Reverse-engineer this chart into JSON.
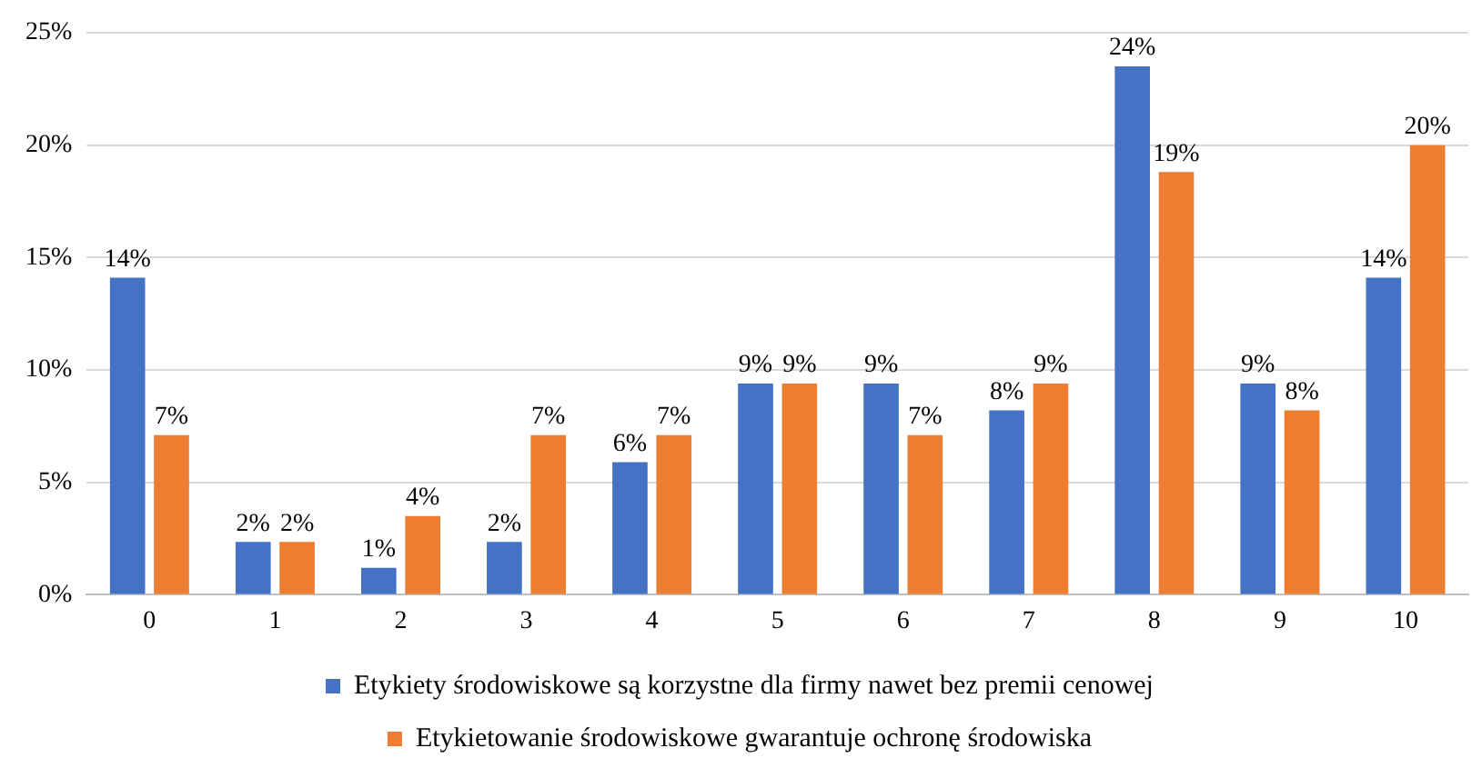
{
  "chart_data": {
    "type": "bar",
    "categories": [
      "0",
      "1",
      "2",
      "3",
      "4",
      "5",
      "6",
      "7",
      "8",
      "9",
      "10"
    ],
    "series": [
      {
        "name": "Etykiety środowiskowe są korzystne dla firmy nawet bez premii cenowej",
        "color": "#4472c4",
        "values": [
          14.1,
          2.35,
          1.2,
          2.35,
          5.9,
          9.4,
          9.4,
          8.2,
          23.5,
          9.4,
          14.1
        ],
        "value_labels": [
          "14%",
          "2%",
          "1%",
          "2%",
          "6%",
          "9%",
          "9%",
          "8%",
          "24%",
          "9%",
          "14%"
        ]
      },
      {
        "name": "Etykietowanie środowiskowe gwarantuje ochronę środowiska",
        "color": "#ed7d31",
        "values": [
          7.1,
          2.35,
          3.5,
          7.1,
          7.1,
          9.4,
          7.1,
          9.4,
          18.8,
          8.2,
          20
        ],
        "value_labels": [
          "7%",
          "2%",
          "4%",
          "7%",
          "7%",
          "9%",
          "7%",
          "9%",
          "19%",
          "8%",
          "20%"
        ]
      }
    ],
    "ylim": [
      0,
      25
    ],
    "yticks": [
      {
        "value": 0,
        "label": "0%"
      },
      {
        "value": 5,
        "label": "5%"
      },
      {
        "value": 10,
        "label": "10%"
      },
      {
        "value": 15,
        "label": "15%"
      },
      {
        "value": 20,
        "label": "20%"
      },
      {
        "value": 25,
        "label": "25%"
      }
    ],
    "grid": "y",
    "legend": "bottom"
  }
}
